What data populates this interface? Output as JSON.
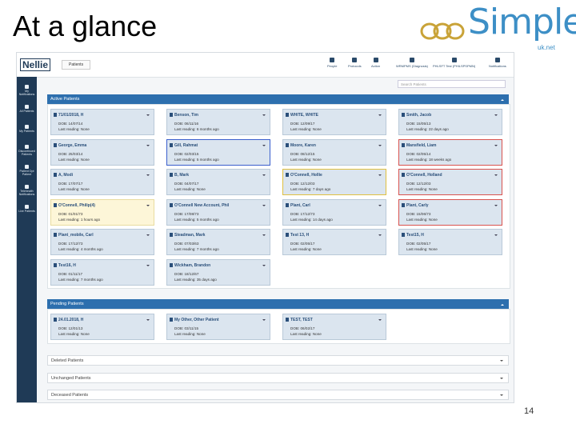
{
  "slide": {
    "title": "At a glance",
    "page_number": "14"
  },
  "logo": {
    "name": "Simple",
    "suffix": "uk.net"
  },
  "app": {
    "brand": "Nellie",
    "tab": "Patients",
    "search_placeholder": "Search Patients",
    "nav": [
      "People",
      "Protocols",
      "Action",
      "WRMPMS (Diagnosis)",
      "PHLSFT Test (PHILSPSPMN)",
      "Notifications"
    ],
    "sidebar": [
      "My Notifications",
      "All Patients",
      "My Patients",
      "Discontinued Patients",
      "Patient Opt Patient",
      "Telehealth Notifications",
      "Live Patients"
    ],
    "sections": {
      "active": {
        "title": "Active Patients",
        "cards": [
          {
            "name": "71/01/2018, H",
            "dob": "DOB: 14/07/14",
            "reading": "Last reading: None"
          },
          {
            "name": "Benson, Tim",
            "dob": "DOB: 06/11/16",
            "reading": "Last reading: 6 months ago"
          },
          {
            "name": "WHITE, WHITE",
            "dob": "DOB: 12/09/17",
            "reading": "Last reading: None"
          },
          {
            "name": "Smith, Jacob",
            "dob": "DOB: 15/05/13",
            "reading": "Last reading: 22 days ago"
          },
          {
            "name": "George, Emma",
            "dob": "DOB: 25/03/14",
            "reading": "Last reading: None"
          },
          {
            "name": "Gill, Rahmat",
            "dob": "DOB: 02/03/15",
            "reading": "Last reading: 5 months ago",
            "border": "#3a5fcd"
          },
          {
            "name": "Moore, Karen",
            "dob": "DOB: 08/12/15",
            "reading": "Last reading: None"
          },
          {
            "name": "Mansfield, Liam",
            "dob": "DOB: 02/05/14",
            "reading": "Last reading: 18 weeks ago",
            "border": "#d9534f"
          },
          {
            "name": "A, Modi",
            "dob": "DOB: 17/07/17",
            "reading": "Last reading: None"
          },
          {
            "name": "B, Mark",
            "dob": "DOB: 04/07/17",
            "reading": "Last reading: None"
          },
          {
            "name": "O'Connell, Hollie",
            "dob": "DOB: 12/12/03",
            "reading": "Last reading: 7 days ago",
            "border": "#e0c040"
          },
          {
            "name": "O'Connell, Holland",
            "dob": "DOB: 12/12/03",
            "reading": "Last reading: None",
            "border": "#d9534f"
          },
          {
            "name": "O'Connell, Philip(4)",
            "dob": "DOB: 01/01/73",
            "reading": "Last reading: 1 hours ago",
            "background": "#fdf6d8",
            "border": "#e8dca0"
          },
          {
            "name": "O'Connell New Account, Phil",
            "dob": "DOB: 17/08/73",
            "reading": "Last reading: 5 months ago"
          },
          {
            "name": "Plant, Carl",
            "dob": "DOB: 17/12/73",
            "reading": "Last reading: 14 days ago"
          },
          {
            "name": "Plant, Carly",
            "dob": "DOB: 15/06/73",
            "reading": "Last reading: None",
            "border": "#d9534f"
          },
          {
            "name": "Plant_mobile, Carl",
            "dob": "DOB: 17/12/73",
            "reading": "Last reading: 4 months ago"
          },
          {
            "name": "Steadman, Mark",
            "dob": "DOB: 07/03/63",
            "reading": "Last reading: 7 months ago"
          },
          {
            "name": "Test 13, H",
            "dob": "DOB: 02/05/17",
            "reading": "Last reading: None"
          },
          {
            "name": "Test15, H",
            "dob": "DOB: 02/05/17",
            "reading": "Last reading: None"
          },
          {
            "name": "Test16, H",
            "dob": "DOB: 01/11/17",
            "reading": "Last reading: 7 months ago"
          },
          {
            "name": "Wickham, Brandon",
            "dob": "DOB: 18/12/67",
            "reading": "Last reading: 35 days ago"
          }
        ]
      },
      "pending": {
        "title": "Pending Patients",
        "cards": [
          {
            "name": "24.01.2018, H",
            "dob": "DOB: 12/01/13",
            "reading": "Last reading: None"
          },
          {
            "name": "My Other, Other Patient",
            "dob": "DOB: 03/11/15",
            "reading": "Last reading: None"
          },
          {
            "name": "TEST, TEST",
            "dob": "DOB: 06/02/17",
            "reading": "Last reading: None"
          }
        ]
      },
      "collapsed": [
        "Deleted Patients",
        "Unchanged Patients",
        "Deceased Patients"
      ]
    }
  }
}
